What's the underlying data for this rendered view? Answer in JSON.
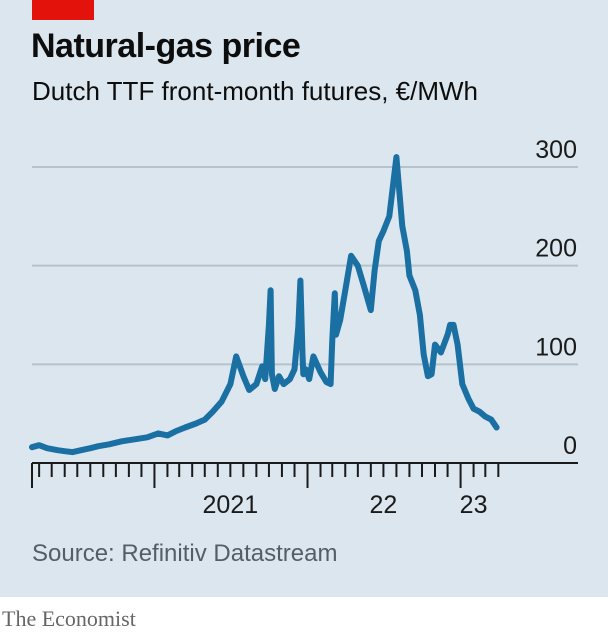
{
  "colors": {
    "background": "#dbe6ee",
    "line": "#1a6fa3",
    "gridline": "#b5c3cc",
    "accent_tag": "#e3120b"
  },
  "header": {
    "title": "Natural-gas price",
    "subtitle": "Dutch TTF front-month futures, €/MWh"
  },
  "footer": {
    "source": "Source: Refinitiv Datastream",
    "brand": "The Economist"
  },
  "chart_data": {
    "type": "line",
    "title": "Natural-gas price",
    "subtitle": "Dutch TTF front-month futures, €/MWh",
    "ylim": [
      0,
      300
    ],
    "yticks": [
      {
        "value": 300,
        "label": "300"
      },
      {
        "value": 200,
        "label": "200"
      },
      {
        "value": 100,
        "label": "100"
      },
      {
        "value": 0,
        "label": "0"
      }
    ],
    "xlim": [
      "2020-03-15",
      "2023-04-05"
    ],
    "xtick_labels": [
      {
        "date": "2021-07-01",
        "label": "2021"
      },
      {
        "date": "2022-07-01",
        "label": "22"
      },
      {
        "date": "2023-02-01",
        "label": "23"
      }
    ],
    "minor_ticks_monthly": true,
    "grid": true,
    "series": [
      {
        "x": [
          "2020-03-15",
          "2020-04-01",
          "2020-04-20",
          "2020-05-15",
          "2020-06-01",
          "2020-06-20",
          "2020-07-10",
          "2020-08-01",
          "2020-08-20",
          "2020-09-15",
          "2020-10-15",
          "2020-11-15",
          "2020-12-15",
          "2021-01-10",
          "2021-02-01",
          "2021-02-20",
          "2021-03-15",
          "2021-04-10",
          "2021-05-01",
          "2021-05-20",
          "2021-06-10",
          "2021-07-01",
          "2021-07-15",
          "2021-08-01",
          "2021-08-15",
          "2021-09-01",
          "2021-09-15",
          "2021-09-22",
          "2021-10-01",
          "2021-10-05",
          "2021-10-08",
          "2021-10-15",
          "2021-10-25",
          "2021-11-05",
          "2021-11-20",
          "2021-12-01",
          "2021-12-10",
          "2021-12-15",
          "2021-12-20",
          "2021-12-22",
          "2021-12-28",
          "2022-01-05",
          "2022-01-15",
          "2022-02-01",
          "2022-02-15",
          "2022-02-25",
          "2022-03-01",
          "2022-03-07",
          "2022-03-10",
          "2022-03-20",
          "2022-04-01",
          "2022-04-15",
          "2022-05-01",
          "2022-05-15",
          "2022-06-01",
          "2022-06-10",
          "2022-06-20",
          "2022-07-01",
          "2022-07-15",
          "2022-08-01",
          "2022-08-15",
          "2022-08-26",
          "2022-09-01",
          "2022-09-15",
          "2022-09-26",
          "2022-10-05",
          "2022-10-15",
          "2022-10-24",
          "2022-11-01",
          "2022-11-15",
          "2022-12-01",
          "2022-12-07",
          "2022-12-15",
          "2022-12-25",
          "2023-01-05",
          "2023-01-20",
          "2023-02-01",
          "2023-02-15",
          "2023-03-01",
          "2023-03-15",
          "2023-03-28"
        ],
        "y": [
          16,
          18,
          15,
          13,
          12,
          11,
          13,
          15,
          17,
          19,
          22,
          24,
          26,
          30,
          28,
          32,
          36,
          40,
          44,
          52,
          62,
          80,
          108,
          88,
          74,
          80,
          98,
          85,
          140,
          175,
          90,
          75,
          88,
          80,
          85,
          95,
          138,
          185,
          110,
          90,
          95,
          85,
          108,
          92,
          82,
          80,
          125,
          172,
          130,
          145,
          175,
          210,
          200,
          180,
          155,
          195,
          225,
          235,
          250,
          310,
          240,
          215,
          190,
          175,
          150,
          110,
          88,
          90,
          120,
          112,
          130,
          140,
          140,
          120,
          80,
          65,
          55,
          52,
          47,
          44,
          36
        ]
      }
    ]
  }
}
